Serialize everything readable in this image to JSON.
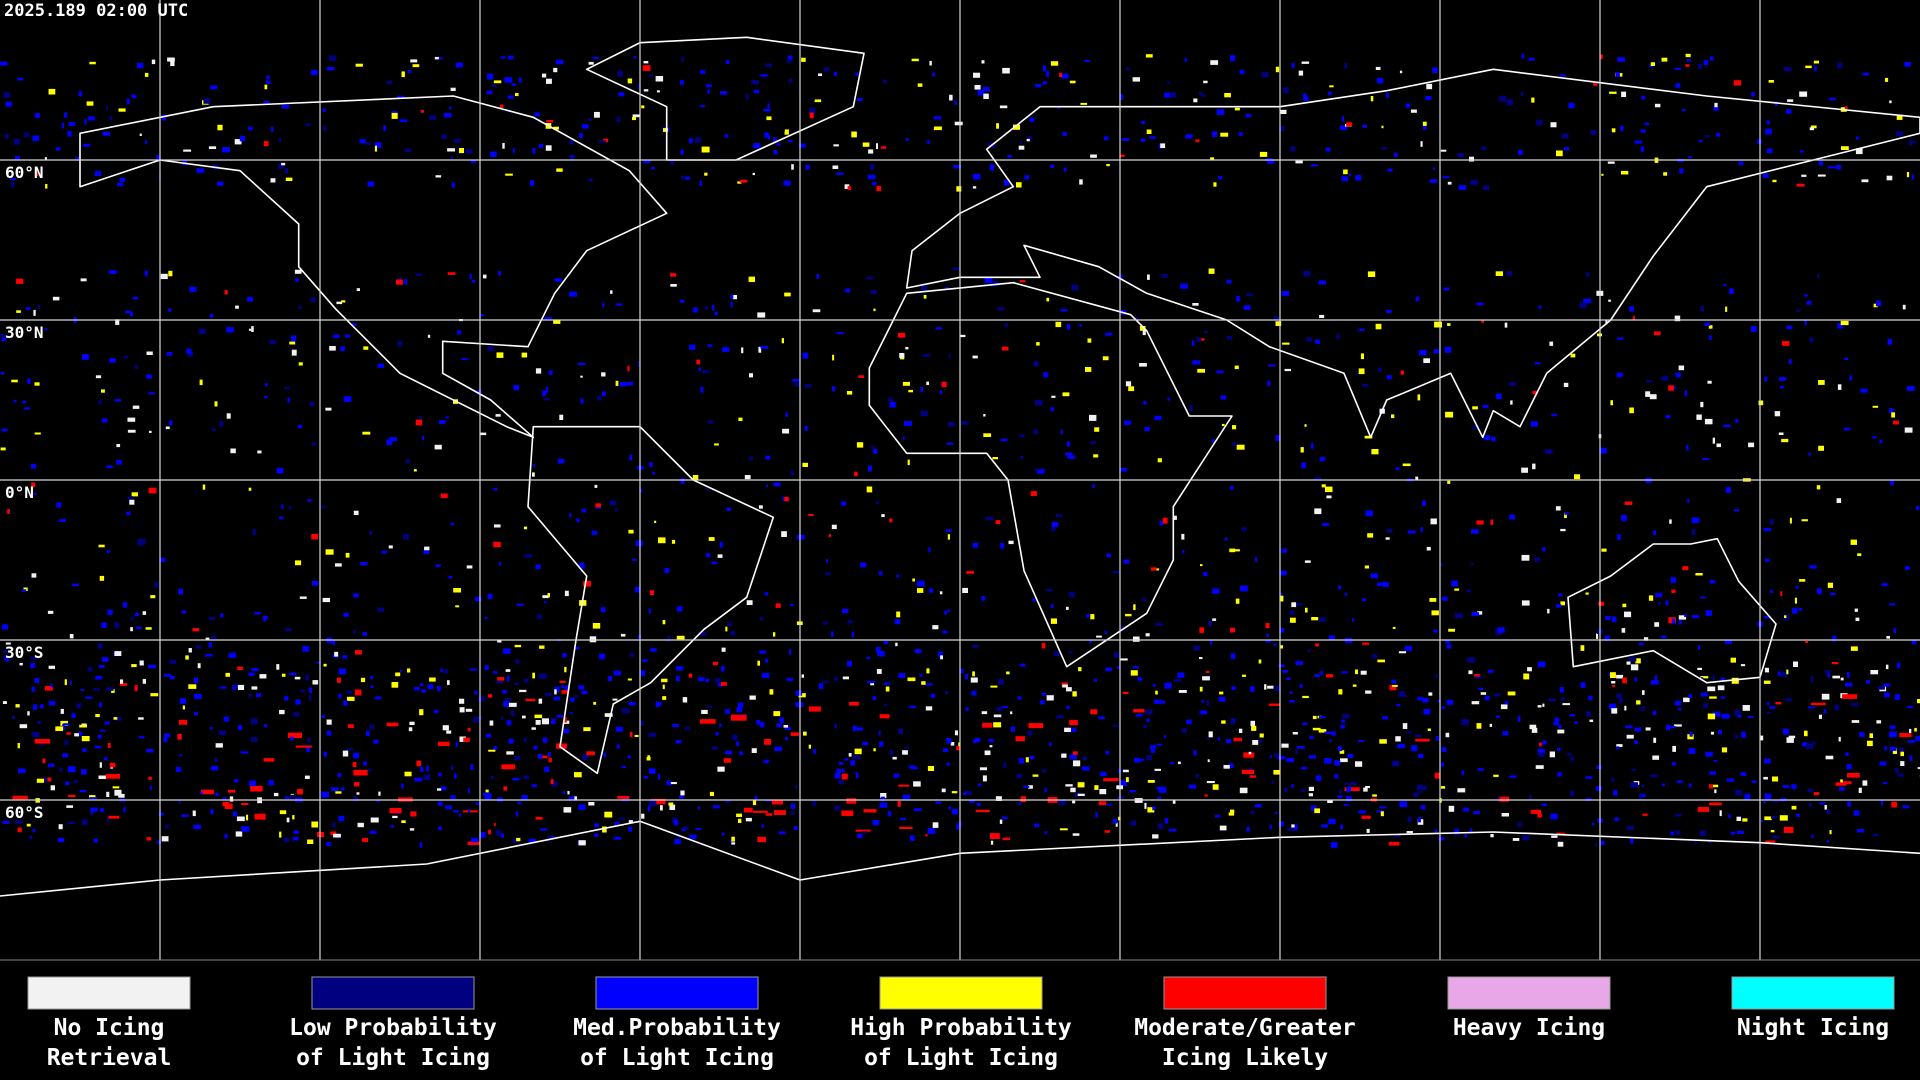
{
  "timestamp": "2025.189 02:00 UTC",
  "map": {
    "lat_labels": [
      "60°N",
      "30°N",
      "0°N",
      "30°S",
      "60°S"
    ]
  },
  "legend": [
    {
      "color": "#f2f2f2",
      "label_lines": [
        "No Icing",
        "Retrieval"
      ]
    },
    {
      "color": "#000080",
      "label_lines": [
        "Low Probability",
        "of Light Icing"
      ]
    },
    {
      "color": "#0000ff",
      "label_lines": [
        "Med.Probability",
        "of Light Icing"
      ]
    },
    {
      "color": "#ffff00",
      "label_lines": [
        "High Probability",
        "of Light Icing"
      ]
    },
    {
      "color": "#ff0000",
      "label_lines": [
        "Moderate/Greater",
        "Icing Likely"
      ]
    },
    {
      "color": "#e8a8e8",
      "label_lines": [
        "Heavy Icing"
      ]
    },
    {
      "color": "#00ffff",
      "label_lines": [
        "Night Icing"
      ]
    }
  ]
}
